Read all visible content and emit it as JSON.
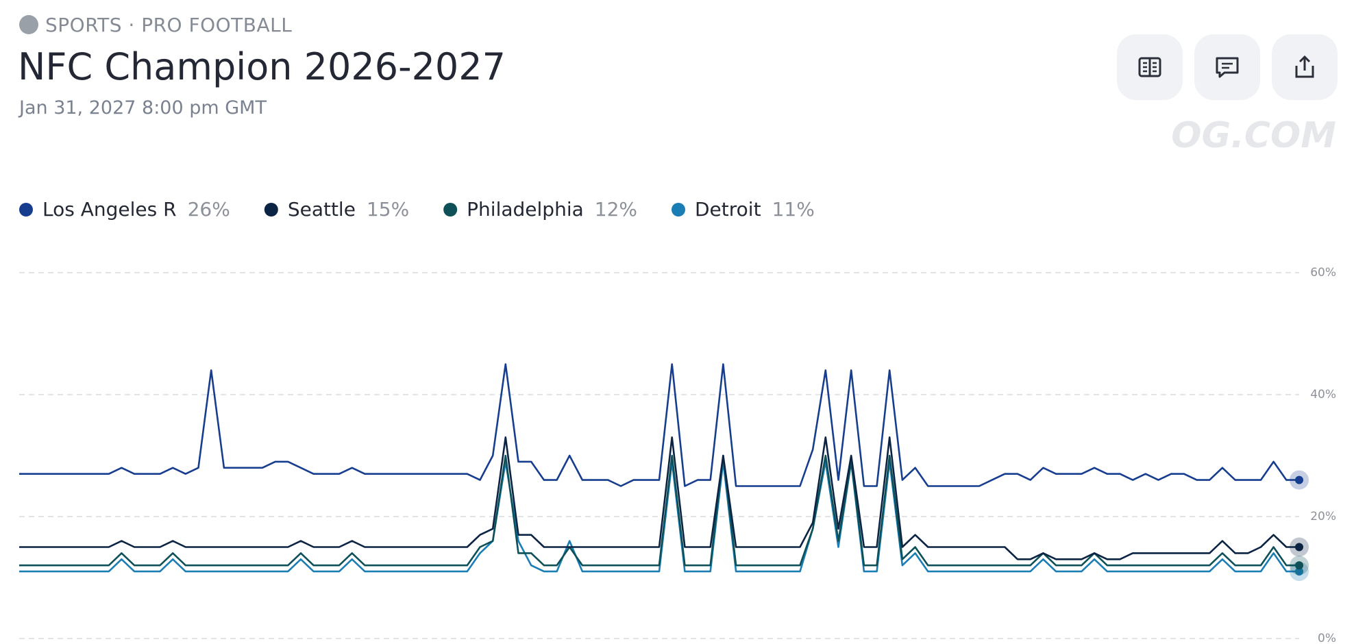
{
  "header": {
    "category": "SPORTS · PRO FOOTBALL",
    "title": "NFC Champion 2026-2027",
    "date": "Jan 31, 2027 8:00 pm GMT",
    "watermark": "OG.COM"
  },
  "chart_data": {
    "type": "line",
    "categories": [
      null,
      null,
      null,
      null,
      null,
      null,
      null,
      null,
      null,
      null,
      null,
      null,
      null,
      null,
      null,
      null,
      null,
      null,
      null,
      null,
      null,
      null,
      null,
      null,
      null,
      null,
      null,
      null,
      null,
      null,
      null,
      null,
      null,
      null,
      null,
      null,
      null,
      null,
      null,
      null,
      null,
      null,
      null,
      null,
      null,
      null,
      null,
      null,
      null,
      null,
      null,
      null,
      null,
      null,
      null,
      null,
      null,
      null,
      null,
      null,
      null,
      null,
      null,
      null,
      null,
      null,
      null,
      null,
      null,
      null,
      null,
      null,
      null,
      null,
      null,
      null,
      null,
      null,
      null,
      null,
      null,
      null,
      null,
      null,
      null,
      null,
      null,
      null,
      null,
      null,
      null,
      null,
      null,
      null,
      null,
      null,
      null,
      null,
      null,
      null,
      null
    ],
    "ylim": [
      0,
      60
    ],
    "yticks": [
      {
        "value": 0,
        "label": "0%"
      },
      {
        "value": 20,
        "label": "20%"
      },
      {
        "value": 40,
        "label": "40%"
      },
      {
        "value": 60,
        "label": "60%"
      }
    ],
    "grid": true,
    "series": [
      {
        "name": "Los Angeles R",
        "color": "#173d8f",
        "legend_value": {
          "value": 26,
          "label": "26%"
        },
        "values": [
          27,
          27,
          27,
          27,
          27,
          27,
          27,
          27,
          28,
          27,
          27,
          27,
          28,
          27,
          28,
          44,
          28,
          28,
          28,
          28,
          29,
          29,
          28,
          27,
          27,
          27,
          28,
          27,
          27,
          27,
          27,
          27,
          27,
          27,
          27,
          27,
          26,
          30,
          45,
          29,
          29,
          26,
          26,
          30,
          26,
          26,
          26,
          25,
          26,
          26,
          26,
          45,
          25,
          26,
          26,
          45,
          25,
          25,
          25,
          25,
          25,
          25,
          31,
          44,
          26,
          44,
          25,
          25,
          44,
          26,
          28,
          25,
          25,
          25,
          25,
          25,
          26,
          27,
          27,
          26,
          28,
          27,
          27,
          27,
          28,
          27,
          27,
          26,
          27,
          26,
          27,
          27,
          26,
          26,
          28,
          26,
          26,
          26,
          29,
          26,
          26
        ]
      },
      {
        "name": "Seattle",
        "color": "#0c2444",
        "legend_value": {
          "value": 15,
          "label": "15%"
        },
        "values": [
          15,
          15,
          15,
          15,
          15,
          15,
          15,
          15,
          16,
          15,
          15,
          15,
          16,
          15,
          15,
          15,
          15,
          15,
          15,
          15,
          15,
          15,
          16,
          15,
          15,
          15,
          16,
          15,
          15,
          15,
          15,
          15,
          15,
          15,
          15,
          15,
          17,
          18,
          33,
          17,
          17,
          15,
          15,
          15,
          15,
          15,
          15,
          15,
          15,
          15,
          15,
          33,
          15,
          15,
          15,
          30,
          15,
          15,
          15,
          15,
          15,
          15,
          19,
          33,
          18,
          30,
          15,
          15,
          33,
          15,
          17,
          15,
          15,
          15,
          15,
          15,
          15,
          15,
          13,
          13,
          14,
          13,
          13,
          13,
          14,
          13,
          13,
          14,
          14,
          14,
          14,
          14,
          14,
          14,
          16,
          14,
          14,
          15,
          17,
          15,
          15
        ]
      },
      {
        "name": "Philadelphia",
        "color": "#0d5058",
        "legend_value": {
          "value": 12,
          "label": "12%"
        },
        "values": [
          12,
          12,
          12,
          12,
          12,
          12,
          12,
          12,
          14,
          12,
          12,
          12,
          14,
          12,
          12,
          12,
          12,
          12,
          12,
          12,
          12,
          12,
          14,
          12,
          12,
          12,
          14,
          12,
          12,
          12,
          12,
          12,
          12,
          12,
          12,
          12,
          15,
          16,
          30,
          14,
          14,
          12,
          12,
          15,
          12,
          12,
          12,
          12,
          12,
          12,
          12,
          30,
          12,
          12,
          12,
          30,
          12,
          12,
          12,
          12,
          12,
          12,
          18,
          30,
          16,
          29,
          12,
          12,
          30,
          13,
          15,
          12,
          12,
          12,
          12,
          12,
          12,
          12,
          12,
          12,
          14,
          12,
          12,
          12,
          14,
          12,
          12,
          12,
          12,
          12,
          12,
          12,
          12,
          12,
          14,
          12,
          12,
          12,
          15,
          12,
          12
        ]
      },
      {
        "name": "Detroit",
        "color": "#1a7db4",
        "legend_value": {
          "value": 11,
          "label": "11%"
        },
        "values": [
          11,
          11,
          11,
          11,
          11,
          11,
          11,
          11,
          13,
          11,
          11,
          11,
          13,
          11,
          11,
          11,
          11,
          11,
          11,
          11,
          11,
          11,
          13,
          11,
          11,
          11,
          13,
          11,
          11,
          11,
          11,
          11,
          11,
          11,
          11,
          11,
          14,
          16,
          29,
          16,
          12,
          11,
          11,
          16,
          11,
          11,
          11,
          11,
          11,
          11,
          11,
          29,
          11,
          11,
          11,
          29,
          11,
          11,
          11,
          11,
          11,
          11,
          18,
          29,
          15,
          29,
          11,
          11,
          29,
          12,
          14,
          11,
          11,
          11,
          11,
          11,
          11,
          11,
          11,
          11,
          13,
          11,
          11,
          11,
          13,
          11,
          11,
          11,
          11,
          11,
          11,
          11,
          11,
          11,
          13,
          11,
          11,
          11,
          14,
          11,
          11
        ]
      }
    ]
  }
}
